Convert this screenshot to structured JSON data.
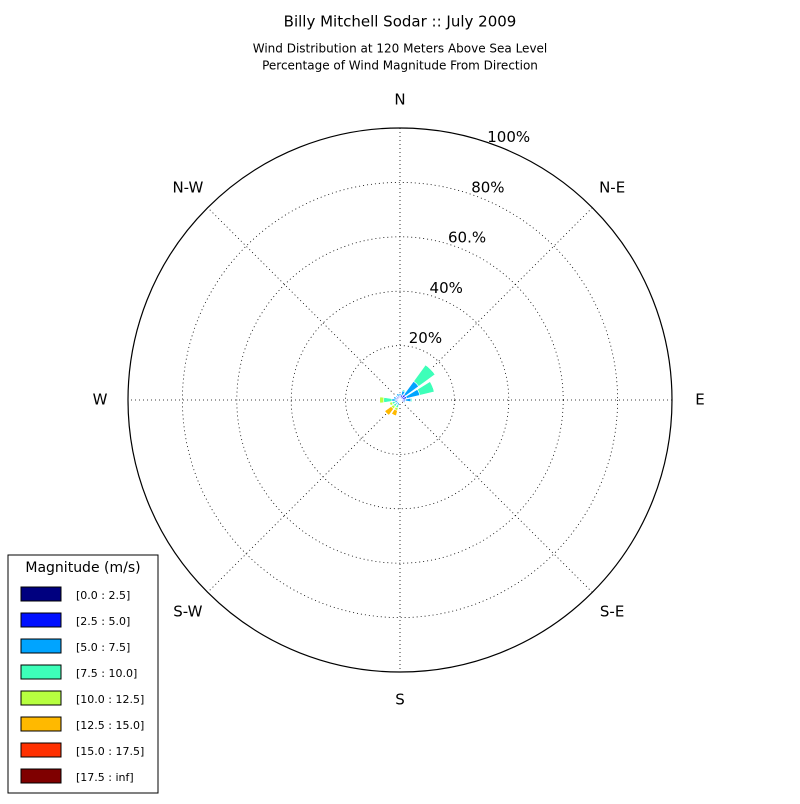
{
  "chart_data": {
    "type": "windrose",
    "title": "Billy Mitchell Sodar :: July 2009",
    "subtitle": [
      "Wind Distribution at 120 Meters Above Sea Level",
      "Percentage of Wind Magnitude From Direction"
    ],
    "categories": [
      "N",
      null,
      "N-E",
      null,
      "E",
      null,
      "S-E",
      null,
      "S",
      null,
      "S-W",
      null,
      "W",
      null,
      "N-W",
      null
    ],
    "ylim": [
      0,
      100
    ],
    "yticks": [
      {
        "value": 20,
        "label": "20%"
      },
      {
        "value": 40,
        "label": "40%"
      },
      {
        "value": 60,
        "label": "60.%"
      },
      {
        "value": 80,
        "label": "80%"
      },
      {
        "value": 100,
        "label": "100%"
      }
    ],
    "grid": true,
    "legend_title": "Magnitude (m/s)",
    "legend_position": "lower-left",
    "series": [
      {
        "name": "[0.0 : 2.5]",
        "color": "#00007f",
        "values": [
          0.5,
          0.5,
          0.5,
          0.5,
          0.5,
          0.5,
          0.5,
          0.5,
          0.5,
          0.5,
          0.5,
          0.5,
          0.5,
          0.5,
          0.5,
          0.5
        ]
      },
      {
        "name": "[2.5 : 5.0]",
        "color": "#0010ff",
        "values": [
          1,
          1.5,
          2,
          2,
          1.5,
          1,
          0.5,
          0,
          0.5,
          0.5,
          0.5,
          0.5,
          1,
          1,
          1,
          1
        ]
      },
      {
        "name": "[5.0 : 7.5]",
        "color": "#00a4ff",
        "values": [
          1,
          1.5,
          6,
          5,
          2,
          0.5,
          0,
          0,
          0,
          1,
          1,
          1,
          1.5,
          1,
          0.5,
          1
        ]
      },
      {
        "name": "[7.5 : 10.0]",
        "color": "#3dffb9",
        "values": [
          0,
          0.5,
          7.5,
          5.5,
          0.5,
          0,
          0,
          0,
          0,
          1,
          1,
          1,
          3,
          0,
          0,
          0
        ]
      },
      {
        "name": "[10.0 : 12.5]",
        "color": "#b7ff40",
        "values": [
          0,
          0,
          0,
          0,
          0,
          0,
          0,
          0,
          0,
          1,
          1,
          1,
          1.5,
          0,
          0,
          0
        ]
      },
      {
        "name": "[12.5 : 15.0]",
        "color": "#ffb900",
        "values": [
          0,
          0,
          0,
          0,
          0,
          0,
          0,
          0,
          0,
          2,
          3,
          0,
          0,
          0,
          0,
          0
        ]
      },
      {
        "name": "[15.0 : 17.5]",
        "color": "#ff3000",
        "values": [
          0,
          0,
          0,
          0,
          0,
          0,
          0,
          0,
          0,
          0,
          0,
          0,
          0,
          0,
          0,
          0
        ]
      },
      {
        "name": "[17.5 : inf]",
        "color": "#7f0000",
        "values": [
          0,
          0,
          0,
          0,
          0,
          0,
          0,
          0,
          0,
          0,
          0,
          0,
          0,
          0,
          0,
          0
        ]
      }
    ]
  }
}
